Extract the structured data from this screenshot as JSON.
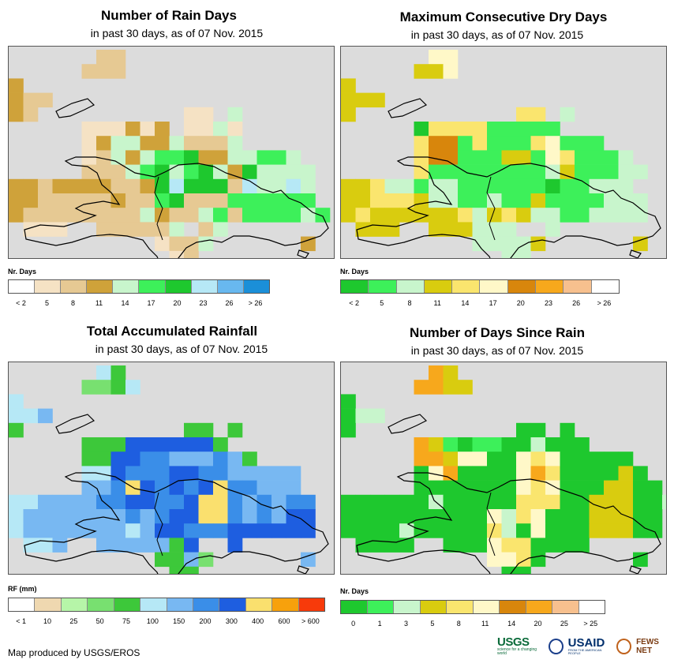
{
  "panels": [
    {
      "title": "Number of Rain Days",
      "subtitle": "in past 30 days, as of 07 Nov. 2015",
      "legend_title": "Nr. Days",
      "legend_colors": [
        "#ffffff",
        "#f5e2c4",
        "#e6c993",
        "#cfa23a",
        "#c8f5cc",
        "#3df05a",
        "#1ec82e",
        "#b6e8f6",
        "#68b8ef",
        "#1b8fd8"
      ],
      "legend_labels": [
        "< 2",
        "5",
        "8",
        "11",
        "14",
        "17",
        "20",
        "23",
        "26",
        "> 26"
      ],
      "grid_colors": {
        "a": "#f5e2c4",
        "b": "#e6c993",
        "c": "#cfa23a",
        "d": "#c8f5cc",
        "e": "#3df05a",
        "f": "#1ec82e",
        "g": "#b6e8f6"
      }
    },
    {
      "title": "Maximum Consecutive Dry Days",
      "subtitle": "in past 30 days, as of 07 Nov. 2015",
      "legend_title": "Nr. Days",
      "legend_colors": [
        "#1ec82e",
        "#3df05a",
        "#c8f5cc",
        "#d9cc0f",
        "#fae56e",
        "#fff8c8",
        "#d8860c",
        "#f7a81c",
        "#f7c08e",
        "#ffffff"
      ],
      "legend_labels": [
        "< 2",
        "5",
        "8",
        "11",
        "14",
        "17",
        "20",
        "23",
        "26",
        "> 26"
      ],
      "grid_colors": {
        "a": "#d9cc0f",
        "b": "#fae56e",
        "c": "#fff8c8",
        "d": "#c8f5cc",
        "e": "#3df05a",
        "f": "#1ec82e",
        "g": "#d8860c"
      }
    },
    {
      "title": "Total Accumulated Rainfall",
      "subtitle": "in past 30 days, as of 07 Nov. 2015",
      "legend_title": "RF (mm)",
      "legend_colors": [
        "#ffffff",
        "#efd8b0",
        "#b6f5a8",
        "#78e070",
        "#3dc83a",
        "#b6e8f6",
        "#78b8f2",
        "#3a8ee8",
        "#1e5ee0",
        "#fae06e",
        "#f7a10c",
        "#f73a0a"
      ],
      "legend_labels": [
        "< 1",
        "10",
        "25",
        "50",
        "75",
        "100",
        "150",
        "200",
        "300",
        "400",
        "600",
        "> 600"
      ],
      "grid_colors": {
        "a": "#b6e8f6",
        "b": "#78b8f2",
        "c": "#3a8ee8",
        "d": "#1e5ee0",
        "e": "#3dc83a",
        "f": "#78e070",
        "g": "#fae06e"
      }
    },
    {
      "title": "Number of Days Since Rain",
      "subtitle": "in past 30 days, as of 07 Nov. 2015",
      "legend_title": "Nr. Days",
      "legend_colors": [
        "#1ec82e",
        "#3df05a",
        "#c8f5cc",
        "#d9cc0f",
        "#fae56e",
        "#fff8c8",
        "#d8860c",
        "#f7a81c",
        "#f7c08e",
        "#ffffff"
      ],
      "legend_labels": [
        "0",
        "1",
        "3",
        "5",
        "8",
        "11",
        "14",
        "20",
        "25",
        "> 25"
      ],
      "grid_colors": {
        "a": "#d9cc0f",
        "b": "#fae56e",
        "c": "#fff8c8",
        "d": "#c8f5cc",
        "e": "#3df05a",
        "f": "#1ec82e",
        "g": "#f7a81c"
      }
    }
  ],
  "grids": [
    [
      "......bb..............",
      ".....bbb..............",
      "c.....................",
      "cbb...................",
      "cb..........aa.d......",
      ".....aaacac.aada......",
      ".....acddccdbbbd......",
      ".....abdcdeefccddeed..",
      ".....bbbdefdefdcfdddd.",
      "ccbccccbbcfgfffbgddgd.",
      "ccbbbbbcbbefbbbeeeeee.",
      "cbbbbbbbbdcbbdebeeeede",
      ".aaa..bbbbbd.bd.......",
      "..........abbd......c.",
      "...........ab........."
    ],
    [
      "......cc..............",
      ".....aac..............",
      "a.....................",
      "aaa...................",
      "a...........bb.d......",
      ".....fbbbbeeeee.......",
      ".....bggebeeebceee....",
      ".....bggeeeaaecbeeed..",
      ".....beeeeeeeedaeeedd.",
      "aabddeddeeeeeefeeddd..",
      "aabbbaddeedeeaeeeeddd.",
      "abaaaaaabdabaddeedddd.",
      ".aaa..aaaddd..d.......",
      ".........dddda......a.",
      "...........dd........."
    ],
    [
      "......ae..............",
      ".....ffea.............",
      "a.....................",
      "aab...................",
      "e...........ee.e......",
      ".....eeedddddde.......",
      ".....eeddccbbbcbe.....",
      ".....aadcccddccbbbbb..",
      ".....bbcgdcdcdgccbbb..",
      "aabbbbccddccdggcbcbcc.",
      "abbbbbbbcbcddggcbcbdd.",
      "abbbbbbbabddcccdddddd.",
      ".aab..bbbbbed..d......",
      "..........eebf......b.",
      "...........ee........."
    ],
    [
      "......ga..............",
      ".....ggaa.............",
      "f.....................",
      "fdd...................",
      "f...........ff.f......",
      ".....gaefeeffdfff.....",
      ".....ggaccffcbcfffff..",
      ".....fcgffffcgbffffaf.",
      ".....fffffffcbcfffaaff",
      "ffffffdfffffbbbffaaaffd",
      "ffffffffffcdbcfffaaaff",
      "ffffdfffffbdfcfffaaaff",
      ".ffff..fffcbbffff.....",
      "..........ccbf......f.",
      "...........ff........."
    ]
  ],
  "credit": "Map produced by USGS/EROS",
  "logos": {
    "usgs": "USGS",
    "usgs_tag": "science for a changing world",
    "usaid": "USAID",
    "usaid_tag": "FROM THE AMERICAN PEOPLE",
    "fews": "FEWS NET"
  }
}
